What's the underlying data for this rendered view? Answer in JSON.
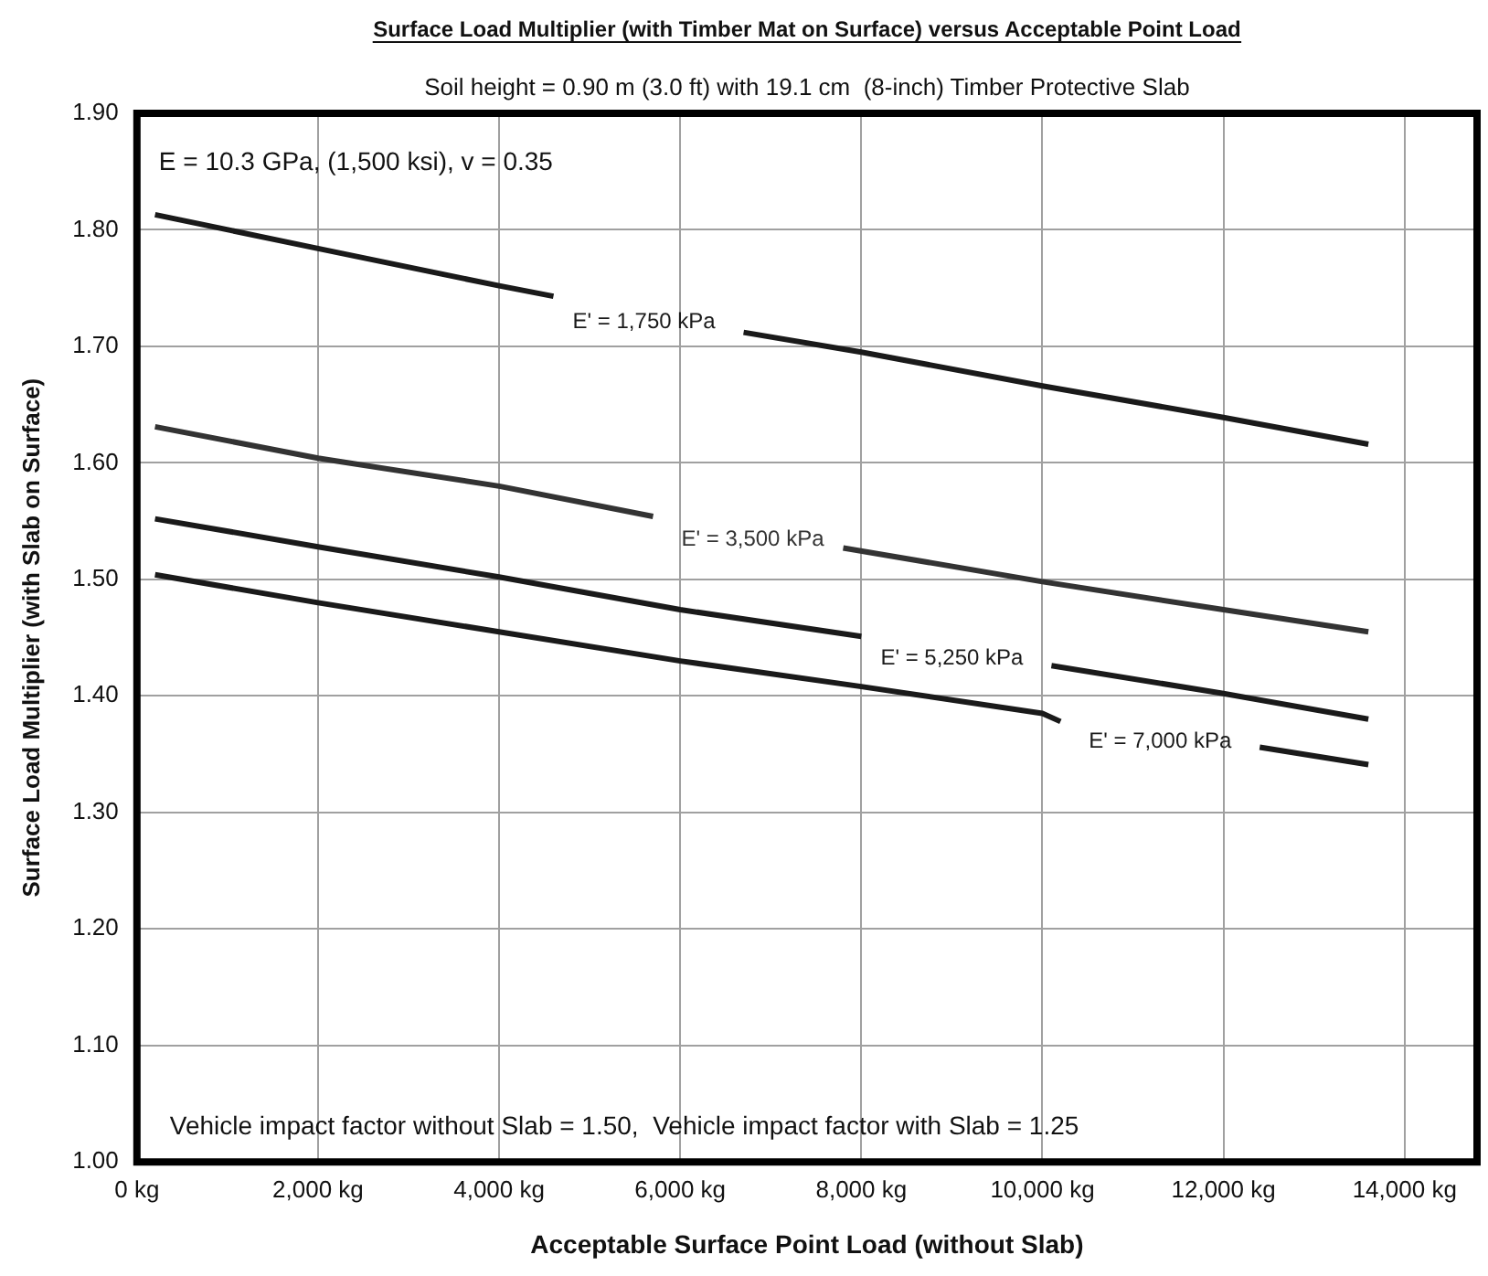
{
  "chart_data": {
    "type": "line",
    "title": "Surface Load Multiplier (with Timber Mat on Surface) versus Acceptable Point Load",
    "subtitle": "Soil height = 0.90 m (3.0 ft) with 19.1 cm  (8-inch) Timber Protective Slab",
    "xlabel": "Acceptable Surface Point Load (without Slab)",
    "ylabel": "Surface Load Multiplier (with Slab on Surface)",
    "annotations": [
      "E = 10.3 GPa, (1,500 ksi), v = 0.35",
      "Vehicle impact factor without Slab = 1.50,  Vehicle impact factor with Slab = 1.25"
    ],
    "xlim": [
      0,
      14800
    ],
    "ylim": [
      1.0,
      1.9
    ],
    "xticks": [
      {
        "value": 0,
        "label": "0 kg"
      },
      {
        "value": 2000,
        "label": "2,000 kg"
      },
      {
        "value": 4000,
        "label": "4,000 kg"
      },
      {
        "value": 6000,
        "label": "6,000 kg"
      },
      {
        "value": 8000,
        "label": "8,000 kg"
      },
      {
        "value": 10000,
        "label": "10,000 kg"
      },
      {
        "value": 12000,
        "label": "12,000 kg"
      },
      {
        "value": 14000,
        "label": "14,000 kg"
      }
    ],
    "yticks": [
      {
        "value": 1.0,
        "label": "1.00"
      },
      {
        "value": 1.1,
        "label": "1.10"
      },
      {
        "value": 1.2,
        "label": "1.20"
      },
      {
        "value": 1.3,
        "label": "1.30"
      },
      {
        "value": 1.4,
        "label": "1.40"
      },
      {
        "value": 1.5,
        "label": "1.50"
      },
      {
        "value": 1.6,
        "label": "1.60"
      },
      {
        "value": 1.7,
        "label": "1.70"
      },
      {
        "value": 1.8,
        "label": "1.80"
      },
      {
        "value": 1.9,
        "label": "1.90"
      }
    ],
    "grid": true,
    "legend": false,
    "marker": "none",
    "line_style": "solid",
    "series": [
      {
        "name": "E' = 1,750 kPa",
        "color": "#1a1a1a",
        "x": [
          200,
          2000,
          4000,
          4600,
          5600,
          6700,
          8000,
          10000,
          12000,
          13600
        ],
        "values": [
          1.813,
          1.784,
          1.752,
          1.743,
          null,
          1.712,
          1.695,
          1.666,
          1.639,
          1.616
        ]
      },
      {
        "name": "E' = 3,500 kPa",
        "color": "#333333",
        "x": [
          200,
          2000,
          4000,
          5700,
          6800,
          7800,
          10000,
          12000,
          13600
        ],
        "values": [
          1.631,
          1.604,
          1.58,
          1.554,
          null,
          1.527,
          1.498,
          1.474,
          1.455
        ]
      },
      {
        "name": "E' = 5,250 kPa",
        "color": "#1a1a1a",
        "x": [
          200,
          2000,
          4000,
          6000,
          8000,
          9000,
          10100,
          12000,
          13600
        ],
        "values": [
          1.552,
          1.528,
          1.502,
          1.474,
          1.451,
          null,
          1.426,
          1.402,
          1.38
        ]
      },
      {
        "name": "E' = 7,000 kPa",
        "color": "#1a1a1a",
        "x": [
          200,
          2000,
          4000,
          6000,
          8000,
          10000,
          10200,
          11300,
          12400,
          13600
        ],
        "values": [
          1.504,
          1.48,
          1.455,
          1.43,
          1.408,
          1.385,
          1.378,
          null,
          1.356,
          1.341
        ]
      }
    ]
  }
}
